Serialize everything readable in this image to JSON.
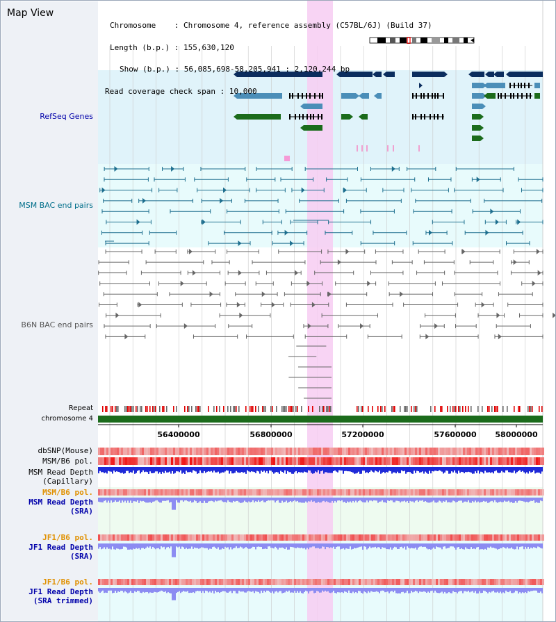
{
  "app": {
    "title": "Map View"
  },
  "info": {
    "chromosome_key": "Chromosome",
    "chromosome_value": "Chromosome 4, reference assembly (C57BL/6J) (Build 37)",
    "length_key": "Length (b.p.)",
    "length_value": "155,630,120",
    "show_key": "Show (b.p.)",
    "show_value": "56,085,698-58,205,941 : 2,120,244 bp",
    "coverage_key": "Read coverage check span",
    "coverage_value": "10,000"
  },
  "tracks": {
    "refseq": "RefSeq Genes",
    "msm_bac": "MSM BAC end pairs",
    "b6n_bac": "B6N BAC end pairs",
    "repeat": "Repeat",
    "chromosome": "chromosome 4",
    "dbsnp": "dbSNP(Mouse)",
    "msm_b6_pol": "MSM/B6 pol.",
    "msm_depth_cap_1": "MSM Read Depth",
    "msm_depth_cap_2": "(Capillary)",
    "msm_b6_pol_2": "MSM/B6 pol.",
    "msm_depth_sra_1": "MSM Read Depth",
    "msm_depth_sra_2": "(SRA)",
    "jf1_b6_pol": "JF1/B6 pol.",
    "jf1_depth_sra_1": "JF1 Read Depth",
    "jf1_depth_sra_2": "(SRA)",
    "jf1_b6_pol_2": "JF1/B6 pol.",
    "jf1_depth_trim_1": "JF1 Read Depth",
    "jf1_depth_trim_2": "(SRA trimmed)"
  },
  "axis": {
    "ticks": [
      "56400000",
      "56800000",
      "57200000",
      "57600000",
      "58000000"
    ]
  },
  "colors": {
    "refseq_bg": "#e0f3fa",
    "msm_bac_bg": "#e8fbfc",
    "highlight": "#f7cdf2",
    "gene_dark": "#0b2d5e",
    "gene_mid": "#4b8eb8",
    "gene_green": "#1b6b1b",
    "chromosome_bar": "#1b6b1b",
    "depth_blue": "#1f2ad8",
    "depth_light": "#8c8cf2",
    "label_blue": "#0000aa",
    "label_orange": "#e09000",
    "label_teal": "#006e8a"
  }
}
